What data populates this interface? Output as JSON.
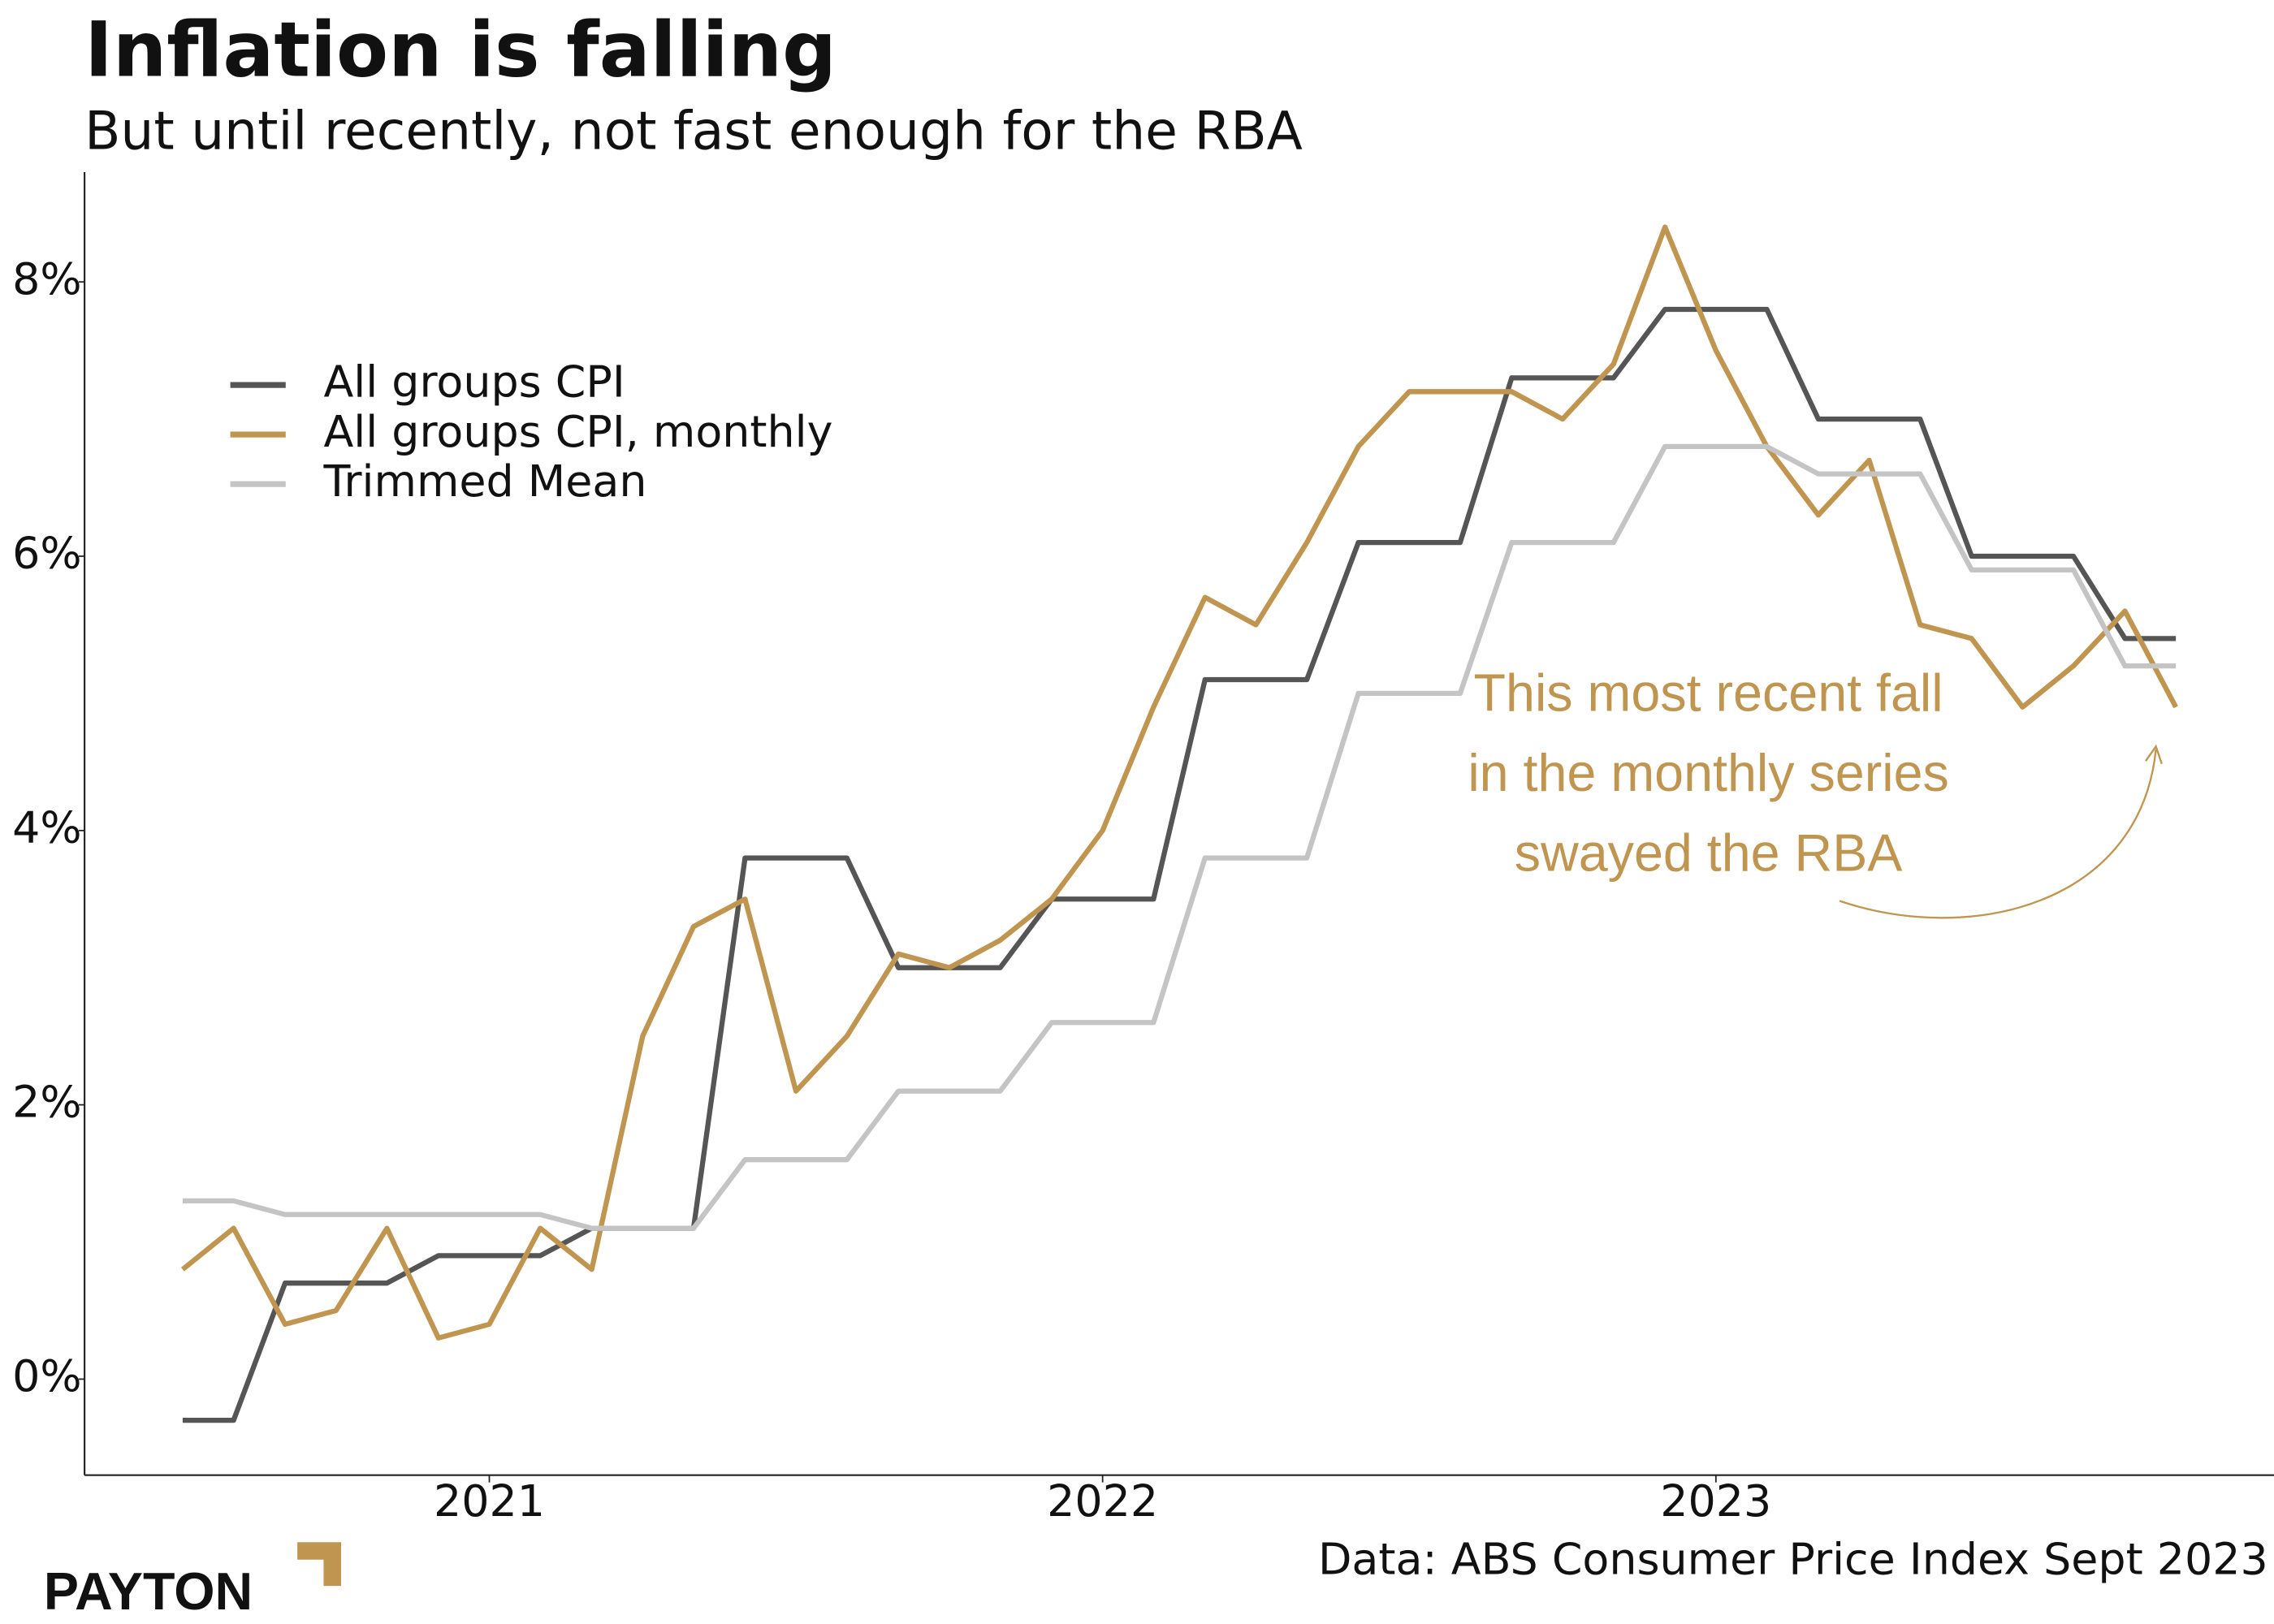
{
  "chart_data": {
    "type": "line",
    "title": "Inflation is falling",
    "subtitle": "But until recently, not fast enough for the RBA",
    "source": "Data: ABS Consumer Price Index Sept 2023",
    "logo": "PAYTON",
    "annotation": [
      "This most recent fall",
      "in the monthly series",
      "swayed the RBA"
    ],
    "x": [
      2020.5,
      2020.583,
      2020.667,
      2020.75,
      2020.833,
      2020.917,
      2021,
      2021.083,
      2021.167,
      2021.25,
      2021.333,
      2021.417,
      2021.5,
      2021.583,
      2021.667,
      2021.75,
      2021.833,
      2021.917,
      2022,
      2022.083,
      2022.167,
      2022.25,
      2022.333,
      2022.417,
      2022.5,
      2022.583,
      2022.667,
      2022.75,
      2022.833,
      2022.917,
      2023,
      2023.083,
      2023.167,
      2023.25,
      2023.333,
      2023.417,
      2023.5,
      2023.583,
      2023.667,
      2023.75
    ],
    "series": [
      {
        "name": "All groups CPI",
        "color": "#555555",
        "values": [
          -0.3,
          -0.3,
          0.7,
          0.7,
          0.7,
          0.9,
          0.9,
          0.9,
          1.1,
          1.1,
          1.1,
          3.8,
          3.8,
          3.8,
          3.0,
          3.0,
          3.0,
          3.5,
          3.5,
          3.5,
          5.1,
          5.1,
          5.1,
          6.1,
          6.1,
          6.1,
          7.3,
          7.3,
          7.3,
          7.8,
          7.8,
          7.8,
          7.0,
          7.0,
          7.0,
          6.0,
          6.0,
          6.0,
          5.4,
          5.4
        ]
      },
      {
        "name": "All groups CPI, monthly",
        "color": "#c09550",
        "values": [
          0.8,
          1.1,
          0.4,
          0.5,
          1.1,
          0.3,
          0.4,
          1.1,
          0.8,
          2.5,
          3.3,
          3.5,
          2.1,
          2.5,
          3.1,
          3.0,
          3.2,
          3.5,
          4.0,
          4.9,
          5.7,
          5.5,
          6.1,
          6.8,
          7.2,
          7.2,
          7.2,
          7.0,
          7.4,
          8.4,
          7.5,
          6.8,
          6.3,
          6.7,
          5.5,
          5.4,
          4.9,
          5.2,
          5.6,
          4.9
        ]
      },
      {
        "name": "Trimmed Mean",
        "color": "#c4c4c4",
        "values": [
          1.3,
          1.3,
          1.2,
          1.2,
          1.2,
          1.2,
          1.2,
          1.2,
          1.1,
          1.1,
          1.1,
          1.6,
          1.6,
          1.6,
          2.1,
          2.1,
          2.1,
          2.6,
          2.6,
          2.6,
          3.8,
          3.8,
          3.8,
          5.0,
          5.0,
          5.0,
          6.1,
          6.1,
          6.1,
          6.8,
          6.8,
          6.8,
          6.6,
          6.6,
          6.6,
          5.9,
          5.9,
          5.9,
          5.2,
          5.2
        ]
      }
    ],
    "xlim": [
      2020.34,
      2023.91
    ],
    "xticks": [
      2021,
      2022,
      2023
    ],
    "ylim": [
      -0.7,
      8.8
    ],
    "yticks": [
      {
        "value": 0,
        "label": "0%"
      },
      {
        "value": 2,
        "label": "2%"
      },
      {
        "value": 4,
        "label": "4%"
      },
      {
        "value": 6,
        "label": "6%"
      },
      {
        "value": 8,
        "label": "8%"
      }
    ],
    "legend": "top-left",
    "annotation_color": "#c09550"
  }
}
